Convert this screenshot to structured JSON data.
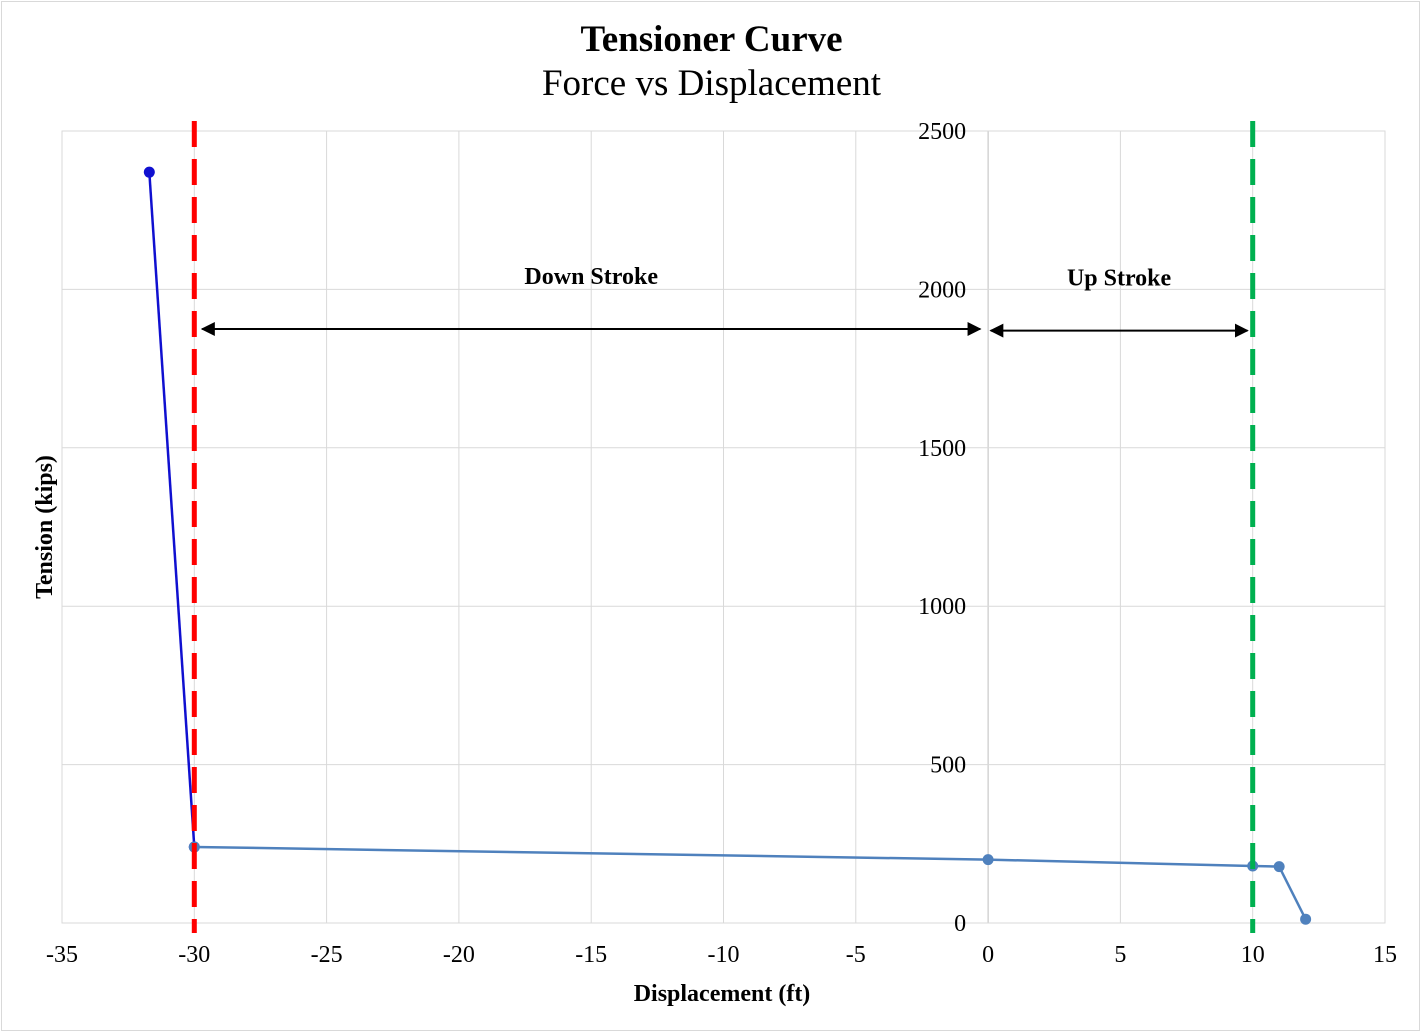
{
  "chart_data": {
    "type": "scatter",
    "title": "Tensioner Curve",
    "subtitle": "Force vs Displacement",
    "xlabel": "Displacement (ft)",
    "ylabel": "Tension (kips)",
    "xlim": [
      -35,
      15
    ],
    "ylim": [
      0,
      2500
    ],
    "x_ticks": [
      -35,
      -30,
      -25,
      -20,
      -15,
      -10,
      -5,
      0,
      5,
      10,
      15
    ],
    "y_ticks": [
      0,
      500,
      1000,
      1500,
      2000,
      2500
    ],
    "grid": true,
    "legend": "none",
    "series": [
      {
        "color": "#1010d0",
        "points": [
          [
            -31.7,
            2370
          ],
          [
            -30.0,
            240
          ]
        ]
      },
      {
        "color": "#4f81bd",
        "points": [
          [
            -30.0,
            240
          ],
          [
            0.0,
            200
          ],
          [
            10.0,
            180
          ],
          [
            11.0,
            178
          ],
          [
            12.0,
            12
          ]
        ]
      }
    ],
    "reference_lines": [
      {
        "x": -30,
        "color": "#ff0000",
        "style": "dashed"
      },
      {
        "x": 10,
        "color": "#00b050",
        "style": "dashed"
      }
    ],
    "annotations": [
      {
        "label": "Down Stroke",
        "from": -29.7,
        "to": -0.3,
        "y": 1875
      },
      {
        "label": "Up Stroke",
        "from": 0.1,
        "to": 9.8,
        "y": 1870
      }
    ]
  }
}
